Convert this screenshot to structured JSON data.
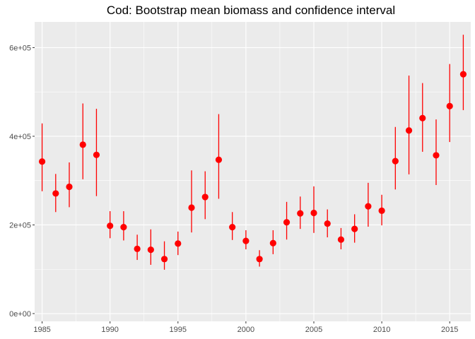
{
  "chart_data": {
    "type": "scatter",
    "title": "Cod: Bootstrap mean biomass and confidence interval",
    "xlabel": "",
    "ylabel": "",
    "xlim": [
      1984.45,
      2016.55
    ],
    "ylim": [
      -17500,
      658000
    ],
    "x_ticks": [
      1985,
      1990,
      1995,
      2000,
      2005,
      2010,
      2015
    ],
    "x_tick_labels": [
      "1985",
      "1990",
      "1995",
      "2000",
      "2005",
      "2010",
      "2015"
    ],
    "y_ticks": [
      0,
      200000,
      400000,
      600000
    ],
    "y_tick_labels": [
      "0e+00",
      "2e+05",
      "4e+05",
      "6e+05"
    ],
    "grid": true,
    "legend": "none",
    "point_color": "#ff0000",
    "panel_color": "#ebebeb",
    "series": [
      {
        "x": [
          1985,
          1986,
          1987,
          1988,
          1989,
          1990,
          1991,
          1992,
          1993,
          1994,
          1995,
          1996,
          1997,
          1998,
          1999,
          2000,
          2001,
          2002,
          2003,
          2004,
          2005,
          2006,
          2007,
          2008,
          2009,
          2010,
          2011,
          2012,
          2013,
          2014,
          2015,
          2016
        ],
        "mean": [
          343000,
          271000,
          286000,
          381000,
          358000,
          198000,
          195000,
          146000,
          144000,
          123000,
          158000,
          239000,
          263000,
          347000,
          195000,
          164000,
          123000,
          159000,
          206000,
          226000,
          227000,
          203000,
          167000,
          191000,
          242000,
          232000,
          344000,
          413000,
          441000,
          357000,
          468000,
          540000
        ],
        "lower": [
          276000,
          229000,
          240000,
          303000,
          265000,
          170000,
          165000,
          121000,
          110000,
          99000,
          132000,
          183000,
          213000,
          259000,
          166000,
          145000,
          106000,
          134000,
          167000,
          191000,
          182000,
          172000,
          145000,
          160000,
          196000,
          199000,
          280000,
          314000,
          365000,
          290000,
          387000,
          459000
        ],
        "upper": [
          429000,
          315000,
          341000,
          474000,
          462000,
          231000,
          231000,
          178000,
          190000,
          163000,
          185000,
          323000,
          321000,
          450000,
          229000,
          188000,
          143000,
          188000,
          252000,
          264000,
          287000,
          235000,
          193000,
          224000,
          295000,
          268000,
          421000,
          537000,
          520000,
          438000,
          563000,
          629000
        ]
      }
    ]
  }
}
